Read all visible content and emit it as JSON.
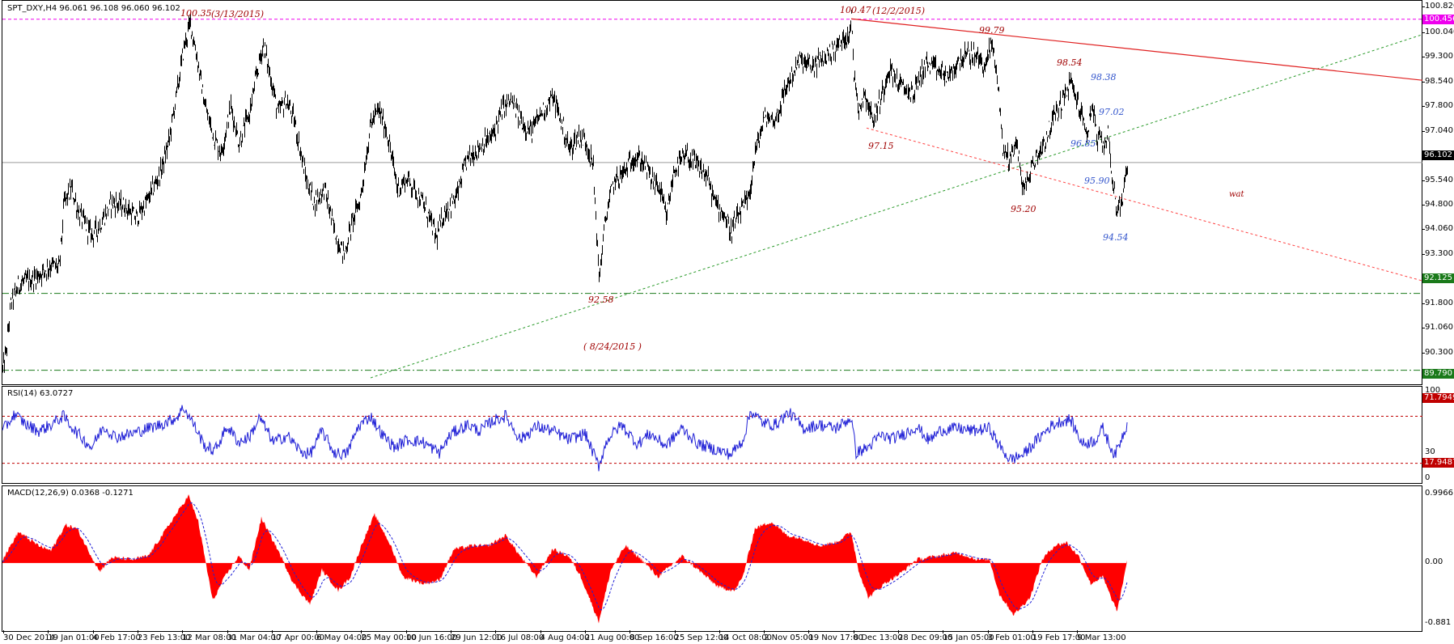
{
  "chart_title": "SPT_DXY,H4  96.061 96.108 96.060 96.102",
  "colors": {
    "price": "#000000",
    "rsi_line": "#1f1fd6",
    "macd_fill": "#ff0000",
    "signal": "#1f1fd6",
    "resistance_line": "#e02020",
    "support_line_dotted": "#ff4040",
    "trend_line": "#2a9a2a",
    "level_green": "#1a7a1a",
    "level_magenta": "#ee00ee",
    "annot_red": "#a00000",
    "annot_blue": "#3355cc"
  },
  "chart_data": [
    {
      "type": "line",
      "name": "price",
      "title": "SPT_DXY,H4  96.061 96.108 96.060 96.102",
      "y_axis_ticks": [
        "100.820",
        "100.040",
        "99.300",
        "98.540",
        "97.800",
        "97.040",
        "96.300",
        "95.540",
        "94.800",
        "94.060",
        "93.300",
        "92.560",
        "91.800",
        "91.060",
        "90.300",
        "89.560"
      ],
      "ylim": [
        89.56,
        100.82
      ],
      "x_axis_ticks": [
        "30 Dec 2014",
        "19 Jan 01:00",
        "4 Feb 17:00",
        "23 Feb 13:00",
        "12 Mar 08:00",
        "31 Mar 04:00",
        "17 Apr 00:00",
        "6 May 04:00",
        "25 May 00:00",
        "10 Jun 16:00",
        "29 Jun 12:00",
        "16 Jul 08:00",
        "4 Aug 04:00",
        "21 Aug 00:00",
        "8 Sep 16:00",
        "25 Sep 12:00",
        "14 Oct 08:00",
        "2 Nov 05:00",
        "19 Nov 17:00",
        "8 Dec 13:00",
        "28 Dec 09:00",
        "15 Jan 05:00",
        "3 Feb 01:00",
        "19 Feb 17:00",
        "9 Mar 13:00"
      ],
      "anchors": [
        [
          0,
          89.8
        ],
        [
          4,
          90.3
        ],
        [
          10,
          91.8
        ],
        [
          20,
          92.4
        ],
        [
          40,
          92.6
        ],
        [
          60,
          93.0
        ],
        [
          70,
          92.9
        ],
        [
          76,
          94.9
        ],
        [
          85,
          95.3
        ],
        [
          95,
          94.5
        ],
        [
          110,
          93.9
        ],
        [
          120,
          94.2
        ],
        [
          135,
          94.9
        ],
        [
          150,
          94.8
        ],
        [
          165,
          94.4
        ],
        [
          180,
          95.0
        ],
        [
          195,
          95.8
        ],
        [
          205,
          96.7
        ],
        [
          215,
          98.2
        ],
        [
          224,
          99.6
        ],
        [
          232,
          100.35
        ],
        [
          240,
          99.3
        ],
        [
          250,
          97.8
        ],
        [
          262,
          96.8
        ],
        [
          270,
          96.4
        ],
        [
          282,
          97.8
        ],
        [
          292,
          96.7
        ],
        [
          305,
          97.6
        ],
        [
          315,
          98.9
        ],
        [
          322,
          99.7
        ],
        [
          332,
          98.6
        ],
        [
          340,
          97.6
        ],
        [
          350,
          98.0
        ],
        [
          360,
          97.4
        ],
        [
          375,
          95.6
        ],
        [
          385,
          94.9
        ],
        [
          398,
          95.3
        ],
        [
          410,
          94.0
        ],
        [
          422,
          93.3
        ],
        [
          432,
          94.3
        ],
        [
          442,
          95.0
        ],
        [
          455,
          97.3
        ],
        [
          465,
          97.7
        ],
        [
          475,
          97.0
        ],
        [
          488,
          95.3
        ],
        [
          500,
          95.6
        ],
        [
          512,
          95.2
        ],
        [
          526,
          94.5
        ],
        [
          536,
          93.8
        ],
        [
          546,
          94.6
        ],
        [
          560,
          95.0
        ],
        [
          574,
          96.2
        ],
        [
          590,
          96.6
        ],
        [
          605,
          96.9
        ],
        [
          617,
          97.7
        ],
        [
          628,
          98.0
        ],
        [
          640,
          97.4
        ],
        [
          653,
          97.0
        ],
        [
          665,
          97.6
        ],
        [
          680,
          98.1
        ],
        [
          692,
          97.2
        ],
        [
          700,
          96.5
        ],
        [
          712,
          96.9
        ],
        [
          722,
          96.7
        ],
        [
          730,
          95.9
        ],
        [
          737,
          92.58
        ],
        [
          745,
          94.4
        ],
        [
          755,
          95.5
        ],
        [
          768,
          95.8
        ],
        [
          780,
          96.3
        ],
        [
          792,
          96.1
        ],
        [
          802,
          95.6
        ],
        [
          812,
          95.3
        ],
        [
          820,
          94.4
        ],
        [
          830,
          95.9
        ],
        [
          845,
          96.3
        ],
        [
          858,
          96.0
        ],
        [
          870,
          95.7
        ],
        [
          880,
          94.9
        ],
        [
          890,
          94.6
        ],
        [
          900,
          94.0
        ],
        [
          912,
          94.6
        ],
        [
          922,
          95.0
        ],
        [
          930,
          96.4
        ],
        [
          942,
          97.5
        ],
        [
          955,
          97.4
        ],
        [
          970,
          98.5
        ],
        [
          985,
          99.2
        ],
        [
          1000,
          99.0
        ],
        [
          1015,
          99.3
        ],
        [
          1030,
          99.6
        ],
        [
          1045,
          100.0
        ],
        [
          1049,
          100.47
        ],
        [
          1052,
          98.8
        ],
        [
          1058,
          97.8
        ],
        [
          1066,
          98.2
        ],
        [
          1075,
          97.4
        ],
        [
          1085,
          98.0
        ],
        [
          1095,
          99.0
        ],
        [
          1110,
          98.4
        ],
        [
          1125,
          98.2
        ],
        [
          1140,
          99.1
        ],
        [
          1155,
          98.9
        ],
        [
          1170,
          98.7
        ],
        [
          1185,
          99.3
        ],
        [
          1200,
          99.4
        ],
        [
          1215,
          99.0
        ],
        [
          1222,
          99.79
        ],
        [
          1230,
          98.6
        ],
        [
          1236,
          96.5
        ],
        [
          1245,
          96.2
        ],
        [
          1252,
          96.8
        ],
        [
          1262,
          95.2
        ],
        [
          1272,
          96.0
        ],
        [
          1285,
          96.6
        ],
        [
          1298,
          97.4
        ],
        [
          1310,
          98.0
        ],
        [
          1320,
          98.54
        ],
        [
          1330,
          97.8
        ],
        [
          1340,
          97.0
        ],
        [
          1347,
          97.9
        ],
        [
          1352,
          96.85
        ],
        [
          1360,
          96.6
        ],
        [
          1366,
          97.02
        ],
        [
          1372,
          95.5
        ],
        [
          1378,
          94.54
        ],
        [
          1385,
          95.2
        ],
        [
          1390,
          96.1
        ]
      ]
    },
    {
      "type": "line",
      "name": "RSI(14)",
      "title": "RSI(14) 63.0727",
      "y_axis_ticks": [
        "100",
        "30",
        "0"
      ],
      "ylim": [
        0,
        100
      ],
      "levels": [
        71.7949,
        17.9487
      ],
      "anchors": [
        [
          0,
          55
        ],
        [
          15,
          74
        ],
        [
          30,
          62
        ],
        [
          45,
          55
        ],
        [
          60,
          62
        ],
        [
          75,
          72
        ],
        [
          90,
          55
        ],
        [
          110,
          36
        ],
        [
          125,
          60
        ],
        [
          140,
          48
        ],
        [
          160,
          52
        ],
        [
          180,
          58
        ],
        [
          195,
          62
        ],
        [
          215,
          70
        ],
        [
          224,
          82
        ],
        [
          235,
          65
        ],
        [
          250,
          38
        ],
        [
          262,
          32
        ],
        [
          278,
          60
        ],
        [
          292,
          42
        ],
        [
          305,
          48
        ],
        [
          318,
          70
        ],
        [
          335,
          42
        ],
        [
          352,
          50
        ],
        [
          368,
          32
        ],
        [
          380,
          28
        ],
        [
          395,
          55
        ],
        [
          410,
          30
        ],
        [
          425,
          28
        ],
        [
          440,
          60
        ],
        [
          455,
          72
        ],
        [
          470,
          50
        ],
        [
          485,
          36
        ],
        [
          500,
          45
        ],
        [
          520,
          42
        ],
        [
          540,
          30
        ],
        [
          555,
          52
        ],
        [
          575,
          62
        ],
        [
          590,
          55
        ],
        [
          605,
          66
        ],
        [
          622,
          72
        ],
        [
          640,
          45
        ],
        [
          660,
          60
        ],
        [
          680,
          55
        ],
        [
          700,
          45
        ],
        [
          720,
          52
        ],
        [
          737,
          15
        ],
        [
          748,
          46
        ],
        [
          765,
          62
        ],
        [
          785,
          40
        ],
        [
          800,
          52
        ],
        [
          820,
          38
        ],
        [
          840,
          58
        ],
        [
          860,
          40
        ],
        [
          880,
          34
        ],
        [
          900,
          28
        ],
        [
          915,
          44
        ],
        [
          925,
          78
        ],
        [
          940,
          64
        ],
        [
          955,
          62
        ],
        [
          972,
          76
        ],
        [
          990,
          58
        ],
        [
          1010,
          62
        ],
        [
          1030,
          58
        ],
        [
          1049,
          70
        ],
        [
          1055,
          30
        ],
        [
          1070,
          36
        ],
        [
          1085,
          50
        ],
        [
          1100,
          46
        ],
        [
          1115,
          52
        ],
        [
          1130,
          60
        ],
        [
          1145,
          44
        ],
        [
          1160,
          56
        ],
        [
          1180,
          58
        ],
        [
          1200,
          55
        ],
        [
          1220,
          58
        ],
        [
          1232,
          38
        ],
        [
          1245,
          22
        ],
        [
          1262,
          28
        ],
        [
          1280,
          46
        ],
        [
          1295,
          60
        ],
        [
          1308,
          66
        ],
        [
          1320,
          68
        ],
        [
          1335,
          40
        ],
        [
          1350,
          44
        ],
        [
          1360,
          58
        ],
        [
          1368,
          40
        ],
        [
          1375,
          27
        ],
        [
          1390,
          63
        ]
      ]
    },
    {
      "type": "area",
      "name": "MACD(12,26,9)",
      "title": "MACD(12,26,9) 0.0368 -0.1271",
      "y_axis_ticks": [
        "0.9966",
        "0.00",
        "-0.881"
      ],
      "ylim": [
        -0.881,
        0.9966
      ],
      "anchors": [
        [
          0,
          0.05
        ],
        [
          20,
          0.45
        ],
        [
          45,
          0.25
        ],
        [
          60,
          0.18
        ],
        [
          78,
          0.55
        ],
        [
          92,
          0.5
        ],
        [
          110,
          0.1
        ],
        [
          120,
          -0.12
        ],
        [
          135,
          0.08
        ],
        [
          160,
          0.05
        ],
        [
          180,
          0.1
        ],
        [
          200,
          0.45
        ],
        [
          220,
          0.8
        ],
        [
          230,
          0.98
        ],
        [
          242,
          0.6
        ],
        [
          260,
          -0.55
        ],
        [
          275,
          -0.2
        ],
        [
          292,
          0.1
        ],
        [
          305,
          -0.1
        ],
        [
          320,
          0.65
        ],
        [
          340,
          0.2
        ],
        [
          360,
          -0.3
        ],
        [
          380,
          -0.6
        ],
        [
          395,
          -0.1
        ],
        [
          415,
          -0.4
        ],
        [
          430,
          -0.2
        ],
        [
          445,
          0.3
        ],
        [
          460,
          0.7
        ],
        [
          478,
          0.3
        ],
        [
          495,
          -0.2
        ],
        [
          520,
          -0.3
        ],
        [
          540,
          -0.25
        ],
        [
          558,
          0.2
        ],
        [
          580,
          0.25
        ],
        [
          600,
          0.25
        ],
        [
          622,
          0.4
        ],
        [
          640,
          0.1
        ],
        [
          660,
          -0.2
        ],
        [
          680,
          0.2
        ],
        [
          700,
          0.1
        ],
        [
          715,
          -0.2
        ],
        [
          737,
          -0.85
        ],
        [
          752,
          -0.1
        ],
        [
          770,
          0.25
        ],
        [
          790,
          0.05
        ],
        [
          810,
          -0.2
        ],
        [
          840,
          0.1
        ],
        [
          860,
          -0.1
        ],
        [
          885,
          -0.35
        ],
        [
          905,
          -0.4
        ],
        [
          915,
          -0.2
        ],
        [
          930,
          0.5
        ],
        [
          950,
          0.6
        ],
        [
          970,
          0.4
        ],
        [
          990,
          0.35
        ],
        [
          1010,
          0.25
        ],
        [
          1030,
          0.3
        ],
        [
          1049,
          0.45
        ],
        [
          1058,
          -0.1
        ],
        [
          1070,
          -0.5
        ],
        [
          1090,
          -0.3
        ],
        [
          1110,
          -0.15
        ],
        [
          1130,
          0.05
        ],
        [
          1155,
          0.1
        ],
        [
          1180,
          0.15
        ],
        [
          1205,
          0.05
        ],
        [
          1220,
          0.05
        ],
        [
          1232,
          -0.45
        ],
        [
          1250,
          -0.75
        ],
        [
          1270,
          -0.5
        ],
        [
          1285,
          0.05
        ],
        [
          1300,
          0.25
        ],
        [
          1315,
          0.3
        ],
        [
          1330,
          0.1
        ],
        [
          1345,
          -0.3
        ],
        [
          1360,
          -0.2
        ],
        [
          1370,
          -0.5
        ],
        [
          1378,
          -0.7
        ],
        [
          1390,
          0.04
        ]
      ]
    }
  ],
  "right_tags": {
    "magenta_level": "100.456",
    "current_price": "96.102",
    "green_level_1": "92.125",
    "green_level_2": "89.790",
    "rsi_upper": "71.7949",
    "rsi_lower": "17.9487"
  },
  "annotations": {
    "high1_value": "100.35",
    "high1_date": "(3/13/2015)",
    "high2_value": "100.47",
    "high2_date": "(12/2/2015)",
    "low_value": "92.58",
    "low_date": "( 8/24/2015 )",
    "a_9979": "99.79",
    "a_9854": "98.54",
    "a_9838": "98.38",
    "a_9702": "97.02",
    "a_9715": "97.15",
    "a_9685": "96.85",
    "a_9590": "95.90",
    "a_9520": "95.20",
    "a_9454": "94.54",
    "wat": "wat"
  }
}
